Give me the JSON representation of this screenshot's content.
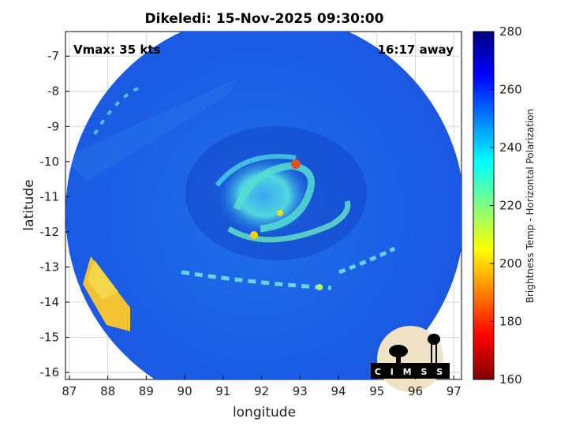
{
  "chart_data": {
    "type": "heatmap",
    "title": "Dikeledi: 15-Nov-2025 09:30:00",
    "xlabel": "longitude",
    "ylabel": "latitude",
    "xlim": [
      86.9,
      97.2
    ],
    "ylim": [
      -16.2,
      -6.3
    ],
    "xticks": [
      "87",
      "88",
      "89",
      "90",
      "91",
      "92",
      "93",
      "94",
      "95",
      "96",
      "97"
    ],
    "yticks": [
      "-7",
      "-8",
      "-9",
      "-10",
      "-11",
      "-12",
      "-13",
      "-14",
      "-15",
      "-16"
    ],
    "grid": true,
    "storm_center": {
      "lon": 92.0,
      "lat": -11.0
    },
    "colorbar": {
      "label": "Brightness Temp - Horizontal Polarization",
      "range": [
        160,
        280
      ],
      "ticks": [
        "280",
        "260",
        "240",
        "220",
        "200",
        "180",
        "160"
      ],
      "colors": [
        "#7f0000",
        "#ff0000",
        "#ff8000",
        "#ffff00",
        "#80ff80",
        "#00ffff",
        "#0080ff",
        "#0000ff",
        "#00007f"
      ]
    },
    "annotations": {
      "vmax": "Vmax: 35 kts",
      "time_away": "16:17 away"
    }
  },
  "logo": {
    "text": "C I M S S"
  }
}
